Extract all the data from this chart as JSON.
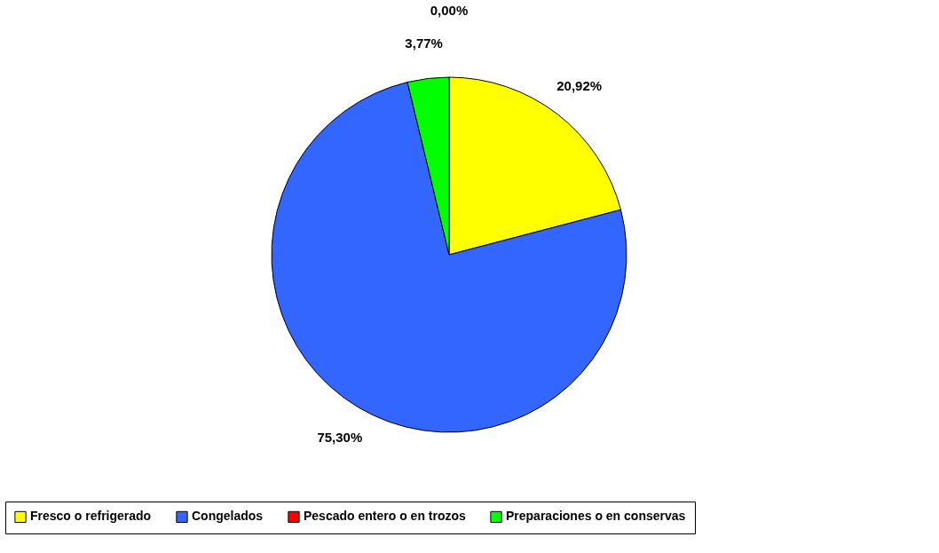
{
  "chart_data": {
    "type": "pie",
    "categories": [
      "Fresco o refrigerado",
      "Congelados",
      "Pescado entero o en trozos",
      "Preparaciones o en conservas"
    ],
    "values": [
      20.92,
      75.3,
      0.0,
      3.77
    ],
    "colors": [
      "#ffff00",
      "#3366ff",
      "#ff0000",
      "#00ff00"
    ],
    "value_labels": [
      "20,92%",
      "75,30%",
      "0,00%",
      "3,77%"
    ],
    "legend": "bottom"
  }
}
